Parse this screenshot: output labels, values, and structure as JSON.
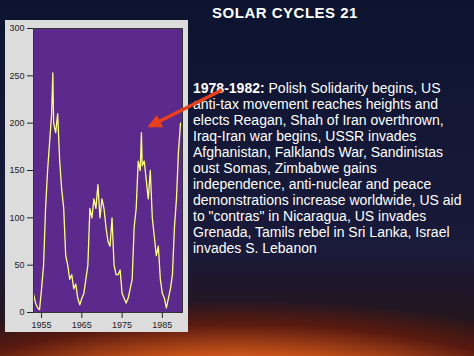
{
  "chart_data": {
    "type": "line",
    "title": "SOLAR CYCLES 21",
    "color": "#ffff80",
    "grid": false,
    "x": [
      1953,
      1953.5,
      1954,
      1954.5,
      1955,
      1955.5,
      1956,
      1956.5,
      1957,
      1957.5,
      1957.8,
      1958,
      1958.5,
      1959,
      1959.5,
      1960,
      1960.5,
      1961,
      1961.5,
      1962,
      1962.5,
      1963,
      1963.5,
      1964,
      1964.5,
      1965,
      1965.5,
      1966,
      1966.5,
      1967,
      1967.5,
      1968,
      1968.5,
      1969,
      1969.5,
      1970,
      1970.5,
      1971,
      1971.5,
      1972,
      1972.5,
      1973,
      1973.5,
      1974,
      1974.5,
      1975,
      1975.5,
      1976,
      1976.5,
      1977,
      1977.5,
      1978,
      1978.5,
      1979,
      1979.5,
      1979.8,
      1980,
      1980.5,
      1981,
      1981.5,
      1982,
      1982.5,
      1983,
      1983.5,
      1984,
      1984.5,
      1985,
      1985.5,
      1986,
      1986.5,
      1987,
      1987.5,
      1988,
      1988.5,
      1989,
      1989.5
    ],
    "values": [
      20,
      10,
      5,
      3,
      25,
      50,
      110,
      150,
      180,
      210,
      253,
      200,
      190,
      210,
      160,
      130,
      110,
      60,
      50,
      35,
      40,
      25,
      30,
      15,
      8,
      15,
      20,
      35,
      50,
      110,
      100,
      120,
      110,
      135,
      100,
      120,
      110,
      90,
      75,
      70,
      100,
      50,
      40,
      40,
      45,
      20,
      15,
      10,
      15,
      25,
      35,
      90,
      110,
      160,
      150,
      190,
      155,
      160,
      140,
      120,
      150,
      100,
      80,
      60,
      70,
      35,
      20,
      15,
      5,
      15,
      25,
      40,
      90,
      120,
      170,
      200
    ],
    "xlim": [
      1953,
      1990
    ],
    "xticks": [
      1955,
      1965,
      1975,
      1985
    ],
    "ylim": [
      0,
      300
    ],
    "yticks": [
      0,
      50,
      100,
      150,
      200,
      250,
      300
    ],
    "annotations": [
      {
        "title": "1978-1982:",
        "text": "Polish Solidarity begins, US anti-tax movement reaches heights and elects Reagan, Shah of Iran overthrown, Iraq-Iran war begins, USSR invades Afghanistan, Falklands War, Sandinistas oust Somas, Zimbabwe gains independence, anti-nuclear and peace demonstrations increase worldwide, US aid to \"contras\" in Nicaragua, US invades Grenada, Tamils rebel in Sri Lanka, Israel invades S. Lebanon"
      }
    ]
  }
}
